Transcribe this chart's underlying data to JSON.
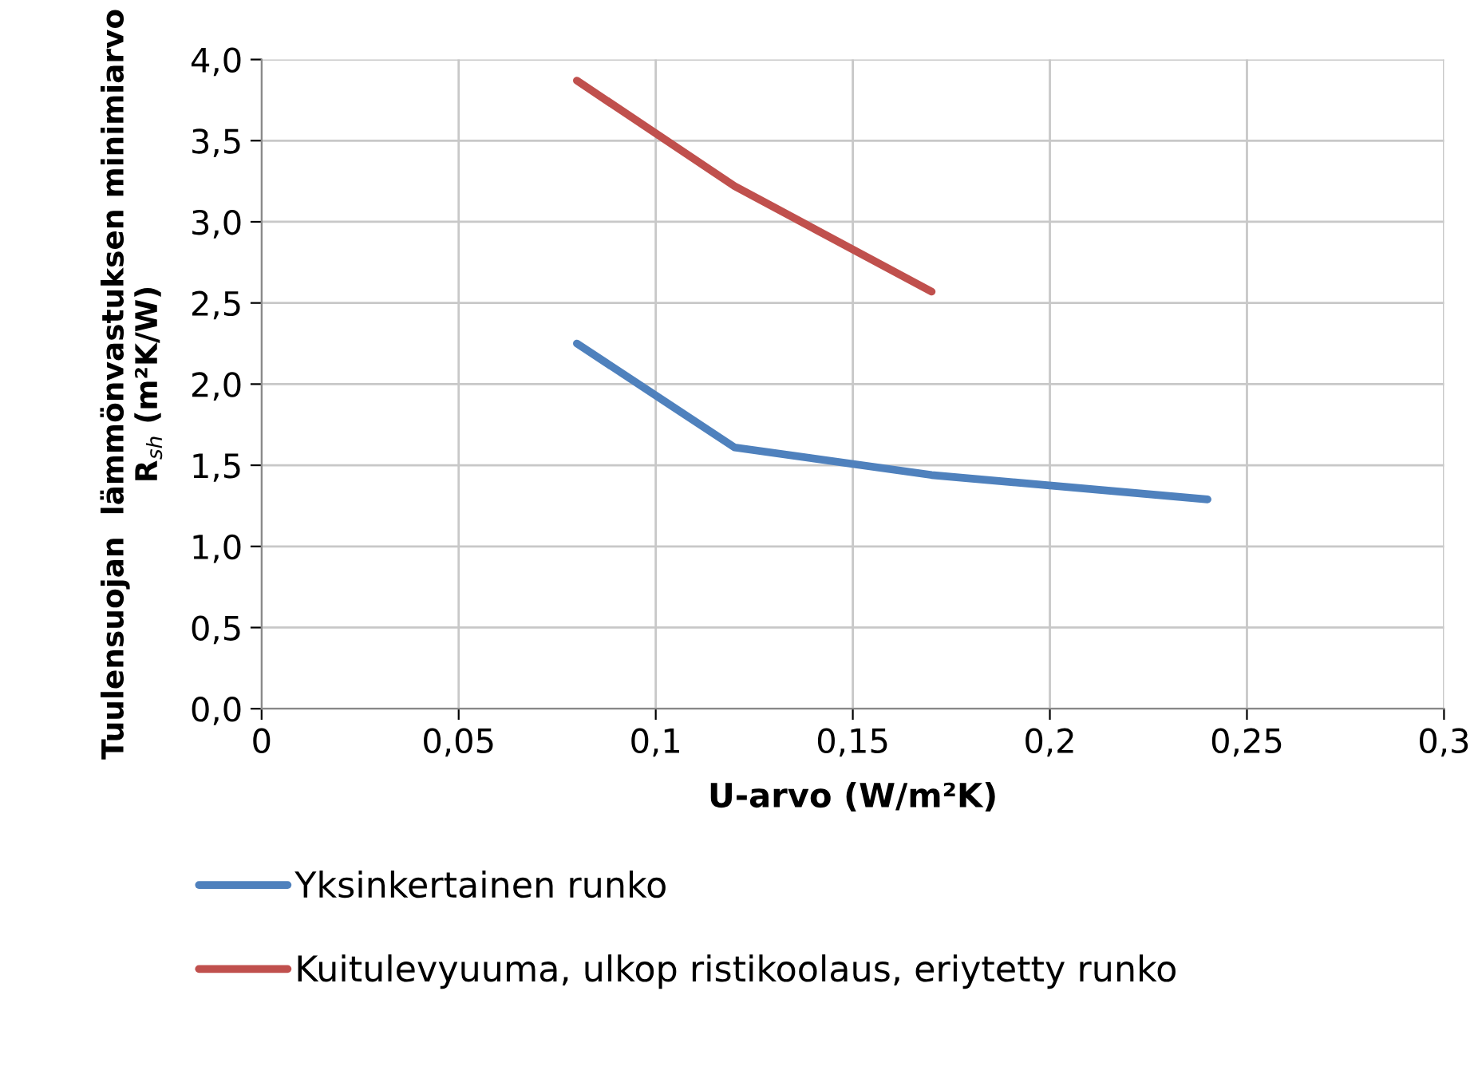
{
  "chart_data": {
    "type": "line",
    "xlabel": "U-arvo (W/m²K)",
    "ylabel": "Tuulensuojan  lämmönvastuksen minimiarvo\nR$_{sh}$ (m²K/W)",
    "series": [
      {
        "name": "Yksinkertainen runko",
        "color": "#4f81bd",
        "x": [
          0.08,
          0.12,
          0.17,
          0.24
        ],
        "values": [
          2.25,
          1.61,
          1.44,
          1.29
        ]
      },
      {
        "name": "Kuitulevyuuma, ulkop ristikoolaus, eriytetty runko",
        "color": "#c0504d",
        "x": [
          0.08,
          0.12,
          0.17
        ],
        "values": [
          3.87,
          3.22,
          2.57
        ]
      }
    ],
    "xlim": [
      0,
      0.3
    ],
    "xticks": [
      0,
      {
        "value": 0.05,
        "label": "0,05"
      },
      {
        "value": 0.1,
        "label": "0,1"
      },
      {
        "value": 0.15,
        "label": "0,15"
      },
      {
        "value": 0.2,
        "label": "0,2"
      },
      {
        "value": 0.25,
        "label": "0,25"
      },
      {
        "value": 0.3,
        "label": "0,3"
      }
    ],
    "ylim": [
      0,
      4
    ],
    "yticks": [
      {
        "value": 0,
        "label": "0,0"
      },
      {
        "value": 0.5,
        "label": "0,5"
      },
      {
        "value": 1,
        "label": "1,0"
      },
      {
        "value": 1.5,
        "label": "1,5"
      },
      {
        "value": 2,
        "label": "2,0"
      },
      {
        "value": 2.5,
        "label": "2,5"
      },
      {
        "value": 3,
        "label": "3,0"
      },
      {
        "value": 3.5,
        "label": "3,5"
      },
      {
        "value": 4,
        "label": "4,0"
      }
    ],
    "grid": true,
    "legend": "bottom",
    "marker": "none",
    "line_style": "solid"
  }
}
